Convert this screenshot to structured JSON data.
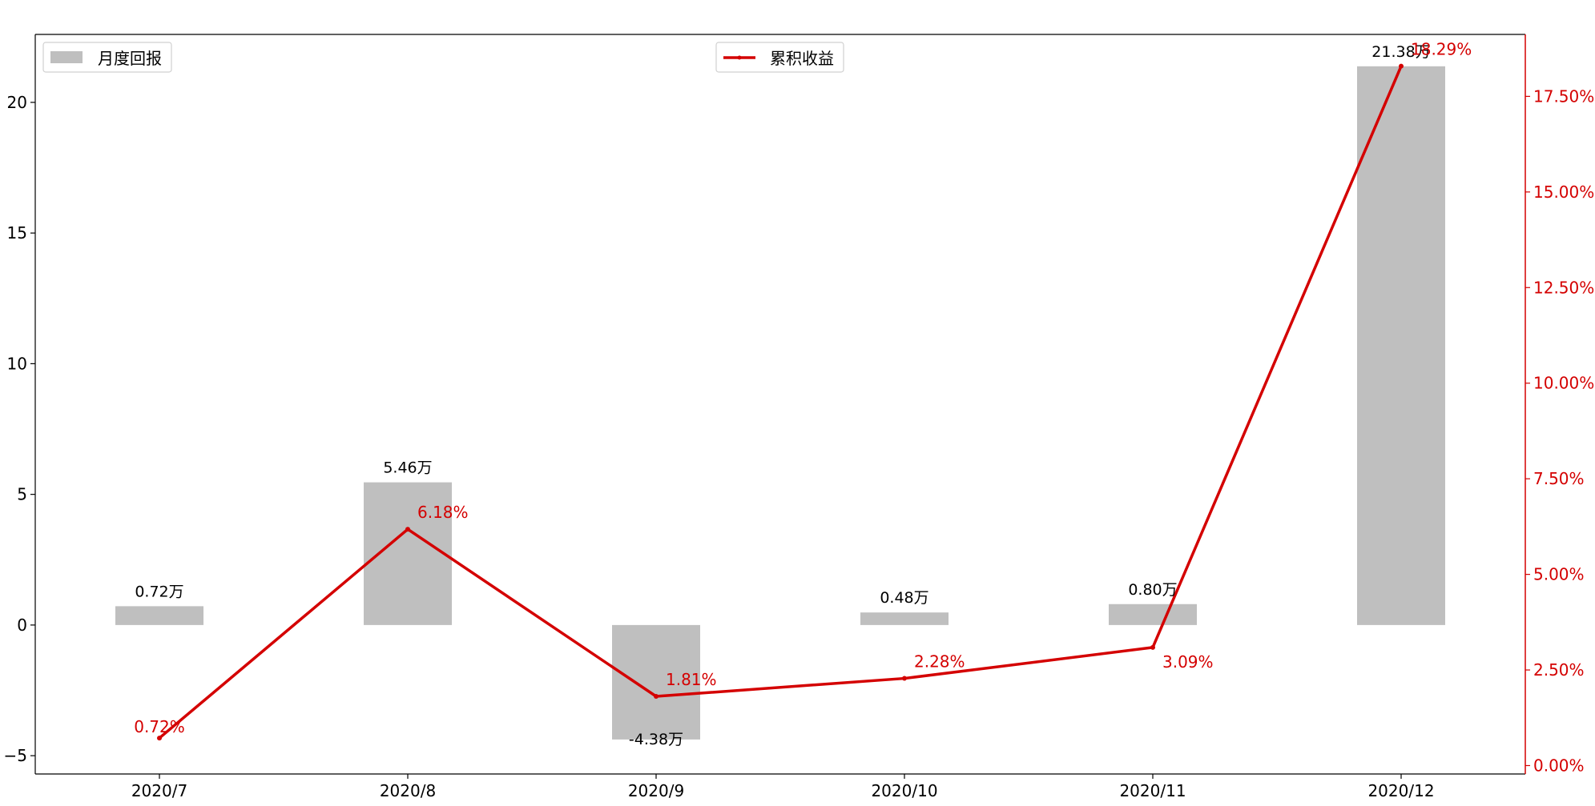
{
  "chart_data": {
    "type": "bar+line",
    "categories": [
      "2020/7",
      "2020/8",
      "2020/9",
      "2020/10",
      "2020/11",
      "2020/12"
    ],
    "series": [
      {
        "name": "月度回报",
        "type": "bar",
        "axis": "left",
        "values": [
          0.72,
          5.46,
          -4.38,
          0.48,
          0.8,
          21.38
        ],
        "labels": [
          "0.72万",
          "5.46万",
          "-4.38万",
          "0.48万",
          "0.80万",
          "21.38万"
        ],
        "color": "#bfbfbf"
      },
      {
        "name": "累积收益",
        "type": "line",
        "axis": "right",
        "values": [
          0.72,
          6.18,
          1.81,
          2.28,
          3.09,
          18.29
        ],
        "labels": [
          "0.72%",
          "6.18%",
          "1.81%",
          "2.28%",
          "3.09%",
          "18.29%"
        ],
        "color": "#d40000"
      }
    ],
    "left_axis": {
      "ylim": [
        -5.7,
        22.6
      ],
      "ticks": [
        -5,
        0,
        5,
        10,
        15,
        20
      ],
      "tick_labels": [
        "−5",
        "0",
        "5",
        "10",
        "15",
        "20"
      ]
    },
    "right_axis": {
      "ylim": [
        -0.22,
        19.12
      ],
      "ticks": [
        0,
        2.5,
        5,
        7.5,
        10,
        12.5,
        15,
        17.5
      ],
      "tick_labels": [
        "0.00%",
        "2.50%",
        "5.00%",
        "7.50%",
        "10.00%",
        "12.50%",
        "15.00%",
        "17.50%"
      ],
      "color": "#d40000"
    },
    "legend": [
      {
        "label": "月度回报",
        "kind": "bar",
        "placement": "top-left"
      },
      {
        "label": "累积收益",
        "kind": "line",
        "placement": "top-center"
      }
    ]
  }
}
